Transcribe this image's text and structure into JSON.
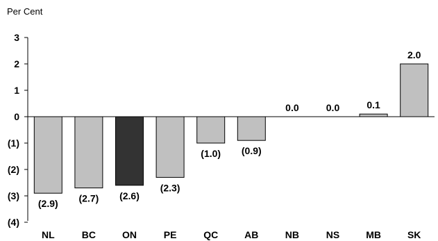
{
  "chart_data": {
    "type": "bar",
    "ylabel": "Per Cent",
    "categories": [
      "NL",
      "BC",
      "ON",
      "PE",
      "QC",
      "AB",
      "NB",
      "NS",
      "MB",
      "SK"
    ],
    "values": [
      -2.9,
      -2.7,
      -2.6,
      -2.3,
      -1.0,
      -0.9,
      0.0,
      0.0,
      0.1,
      2.0
    ],
    "data_labels": [
      "(2.9)",
      "(2.7)",
      "(2.6)",
      "(2.3)",
      "(1.0)",
      "(0.9)",
      "0.0",
      "0.0",
      "0.1",
      "2.0"
    ],
    "ylim": [
      -4,
      3
    ],
    "yticks": [
      3,
      2,
      1,
      0,
      -1,
      -2,
      -3,
      -4
    ],
    "ytick_labels": [
      "3",
      "2",
      "1",
      "0",
      "(1)",
      "(2)",
      "(3)",
      "(4)"
    ],
    "highlight_category": "ON",
    "colors": {
      "bar": "#c0c0c0",
      "highlight": "#333333",
      "outline": "#000000"
    },
    "grid": false
  }
}
